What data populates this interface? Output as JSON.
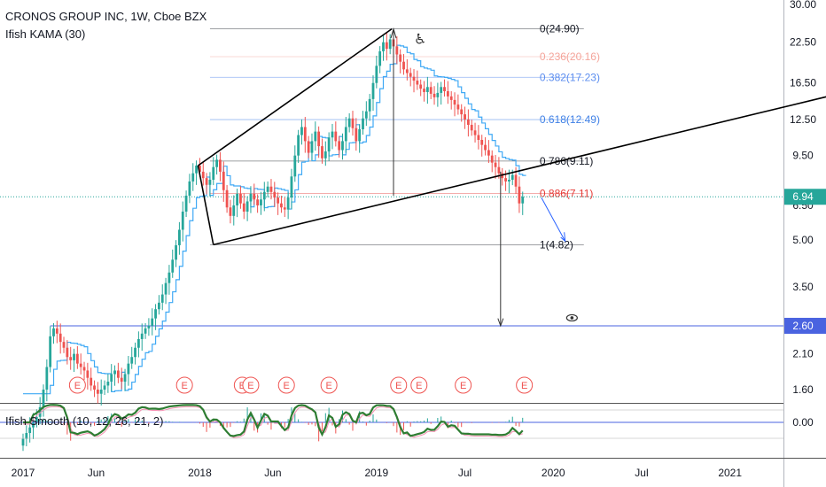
{
  "legend": {
    "title": "CRONOS GROUP INC, 1W, Cboe BZX",
    "indicator1": "Ifish KAMA (30)",
    "indicator2": "Ifish Smooth (10, 12, 26, 21, 2)"
  },
  "colors": {
    "up": "#26a69a",
    "down": "#ef5350",
    "kama": "#3fa9f5",
    "price_line": "#4a63e0",
    "trend": "#000000",
    "arrow_blue": "#2962ff"
  },
  "chart_data": {
    "type": "candlestick",
    "symbol": "CRONOS GROUP INC",
    "interval": "1W",
    "exchange": "Cboe BZX",
    "y_scale": "log",
    "y_ticks": [
      "30.00",
      "22.50",
      "16.50",
      "12.50",
      "9.50",
      "6.50",
      "5.00",
      "3.50",
      "2.60",
      "2.10",
      "1.60"
    ],
    "y_tick_values": [
      30,
      22.5,
      16.5,
      12.5,
      9.5,
      6.5,
      5.0,
      3.5,
      2.6,
      2.1,
      1.6
    ],
    "x_ticks": [
      {
        "label": "2017",
        "t": 0
      },
      {
        "label": "Jun",
        "t": 21.5
      },
      {
        "label": "2018",
        "t": 52
      },
      {
        "label": "Jun",
        "t": 73.5
      },
      {
        "label": "2019",
        "t": 104
      },
      {
        "label": "Jul",
        "t": 130
      },
      {
        "label": "2020",
        "t": 156
      },
      {
        "label": "Jul",
        "t": 182
      },
      {
        "label": "2021",
        "t": 208
      }
    ],
    "current_price": "6.94",
    "price_label": "2.60",
    "price_level": 2.6,
    "indicator_ticks": [
      "0.00"
    ],
    "fib_levels": [
      {
        "label": "0(24.90)",
        "value": 24.9,
        "color": "#131722"
      },
      {
        "label": "0.236(20.16)",
        "value": 20.16,
        "color": "#f4a49a"
      },
      {
        "label": "0.382(17.23)",
        "value": 17.23,
        "color": "#5b8def"
      },
      {
        "label": "0.618(12.49)",
        "value": 12.49,
        "color": "#3f80e6"
      },
      {
        "label": "0.786(9.11)",
        "value": 9.11,
        "color": "#131722"
      },
      {
        "label": "0.886(7.11)",
        "value": 7.11,
        "color": "#e53935"
      },
      {
        "label": "1(4.82)",
        "value": 4.82,
        "color": "#131722"
      }
    ],
    "earnings_marker": "E",
    "earnings_t": [
      16,
      47.5,
      64.5,
      67,
      77.5,
      90,
      110.5,
      116.5,
      129.5,
      147.5
    ],
    "closes": [
      1.1,
      1.15,
      1.2,
      1.25,
      1.3,
      1.4,
      1.6,
      1.9,
      2.4,
      2.55,
      2.45,
      2.3,
      2.2,
      2.05,
      2.0,
      2.1,
      1.95,
      1.9,
      1.85,
      1.75,
      1.65,
      1.6,
      1.55,
      1.6,
      1.65,
      1.7,
      1.8,
      1.85,
      1.75,
      1.7,
      1.8,
      1.95,
      2.05,
      2.2,
      2.35,
      2.45,
      2.55,
      2.6,
      2.75,
      2.95,
      3.1,
      3.3,
      3.6,
      3.9,
      4.3,
      4.8,
      5.4,
      6.2,
      7.0,
      7.8,
      8.3,
      8.8,
      8.4,
      8.0,
      7.6,
      7.9,
      8.7,
      9.2,
      8.4,
      7.3,
      6.4,
      6.0,
      6.5,
      7.1,
      6.6,
      6.2,
      6.7,
      7.1,
      6.8,
      6.5,
      6.8,
      7.2,
      7.5,
      7.2,
      6.9,
      6.6,
      6.4,
      6.3,
      6.9,
      8.1,
      9.5,
      11.1,
      11.8,
      10.6,
      9.7,
      10.6,
      11.4,
      10.2,
      9.3,
      9.8,
      10.9,
      11.4,
      10.6,
      9.9,
      10.6,
      11.8,
      12.6,
      11.7,
      10.6,
      11.6,
      12.6,
      13.3,
      14.6,
      16.5,
      18.8,
      21.0,
      22.5,
      21.4,
      23.0,
      21.8,
      20.5,
      19.4,
      18.3,
      17.8,
      17.3,
      16.8,
      16.3,
      15.8,
      15.4,
      16.0,
      15.2,
      14.8,
      15.3,
      16.0,
      15.5,
      14.9,
      14.5,
      14.0,
      13.5,
      13.0,
      12.5,
      12.0,
      11.5,
      11.1,
      10.7,
      10.3,
      9.9,
      9.5,
      9.0,
      8.7,
      8.3,
      8.0,
      7.8,
      7.9,
      8.2,
      7.5,
      6.6,
      6.94
    ]
  }
}
